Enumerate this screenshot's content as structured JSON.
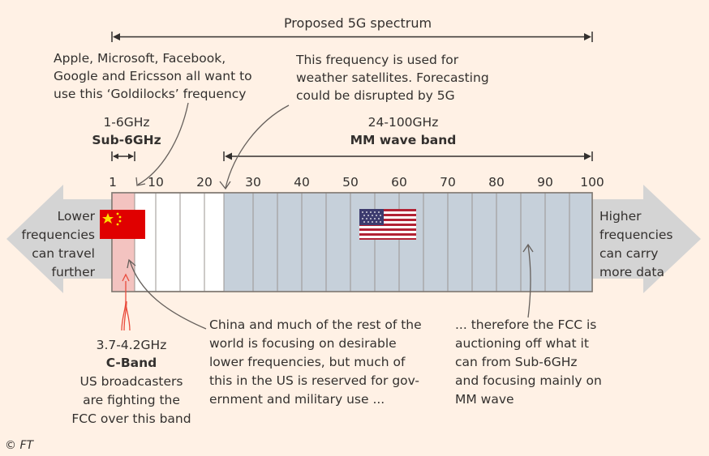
{
  "title": "Proposed 5G spectrum",
  "annotations": {
    "goldilocks": [
      "Apple, Microsoft, Facebook,",
      "Google and Ericsson all want to",
      "use this ‘Goldilocks’ frequency"
    ],
    "weather": [
      "This frequency is used for",
      "weather satellites. Forecasting",
      "could be disrupted by 5G"
    ],
    "china": [
      "China and much of the rest of the",
      "world is focusing on desirable",
      "lower frequencies, but much of",
      "this in the US is reserved for gov-",
      "ernment and military use ..."
    ],
    "fcc": [
      "... therefore the FCC is",
      "auctioning off what it",
      "can from Sub-6GHz",
      "and focusing mainly on",
      "MM wave"
    ],
    "cband": [
      "US broadcasters",
      "are  fighting the",
      "FCC over this band"
    ]
  },
  "bands": {
    "sub6": {
      "range": "1-6GHz",
      "name": "Sub-6GHz"
    },
    "mmwave": {
      "range": "24-100GHz",
      "name": "MM wave band"
    },
    "cband": {
      "range": "3.7-4.2GHz",
      "name": "C-Band"
    }
  },
  "left_arrow": [
    "Lower",
    "frequencies",
    "can travel",
    "further"
  ],
  "right_arrow": [
    "Higher",
    "frequencies",
    "can carry",
    "more data"
  ],
  "ticks": [
    "1",
    "10",
    "20",
    "30",
    "40",
    "50",
    "60",
    "70",
    "80",
    "90",
    "100"
  ],
  "credit": "© FT",
  "colors": {
    "background": "#fff1e5",
    "arrow": "#d4d4d4",
    "sub6_fill": "#f3c3c0",
    "mmwave_fill": "#c6d0da",
    "china_red": "#e00000",
    "text": "#33302e"
  }
}
